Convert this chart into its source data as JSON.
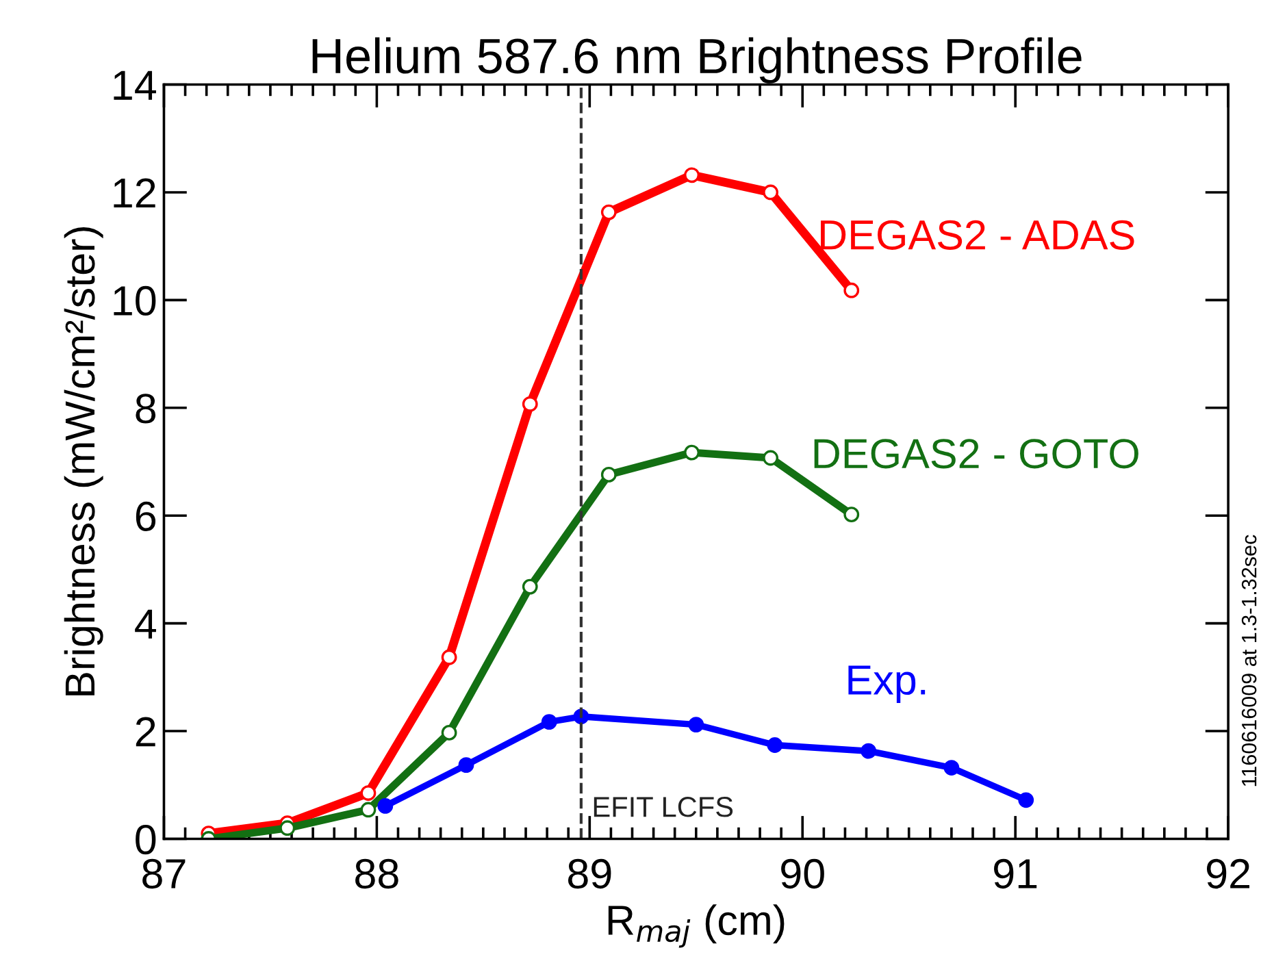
{
  "chart_data": {
    "type": "line",
    "title": "Helium 587.6 nm Brightness Profile",
    "xlabel": "R$_{maj}$ (cm)",
    "ylabel": "Brightness (mW/cm²/ster)",
    "xlim": [
      87,
      92
    ],
    "xticks": [
      87,
      88,
      89,
      90,
      91,
      92
    ],
    "ylim": [
      0,
      14
    ],
    "yticks": [
      0,
      2,
      4,
      6,
      8,
      10,
      12,
      14
    ],
    "grid": false,
    "legend": false,
    "line_style": "solid",
    "series": [
      {
        "name": "DEGAS2 - ADAS",
        "color": "#ff0000",
        "marker": "circle",
        "x": [
          87.21,
          87.58,
          87.96,
          88.34,
          88.72,
          89.09,
          89.48,
          89.85,
          90.23
        ],
        "values": [
          0.1,
          0.29,
          0.85,
          3.37,
          8.07,
          11.63,
          12.32,
          12.0,
          10.18
        ]
      },
      {
        "name": "DEGAS2 - GOTO",
        "color": "#137013",
        "marker": "circle",
        "x": [
          87.21,
          87.58,
          87.96,
          88.34,
          88.72,
          89.09,
          89.48,
          89.85,
          90.23
        ],
        "values": [
          0.0,
          0.2,
          0.54,
          1.97,
          4.68,
          6.76,
          7.17,
          7.07,
          6.02
        ]
      },
      {
        "name": "Exp.",
        "color": "#0000ff",
        "marker": "circle",
        "x": [
          88.04,
          88.42,
          88.81,
          88.96,
          89.5,
          89.87,
          90.31,
          90.7,
          91.05
        ],
        "values": [
          0.61,
          1.37,
          2.17,
          2.27,
          2.12,
          1.74,
          1.63,
          1.32,
          0.72
        ]
      }
    ],
    "ref_lines": [
      {
        "axis": "x",
        "value": 88.96,
        "label": "EFIT LCFS",
        "color": "#333333",
        "line_style": "dashed"
      }
    ],
    "annotations": [
      "1160616009 at 1.3-1.32sec"
    ]
  }
}
